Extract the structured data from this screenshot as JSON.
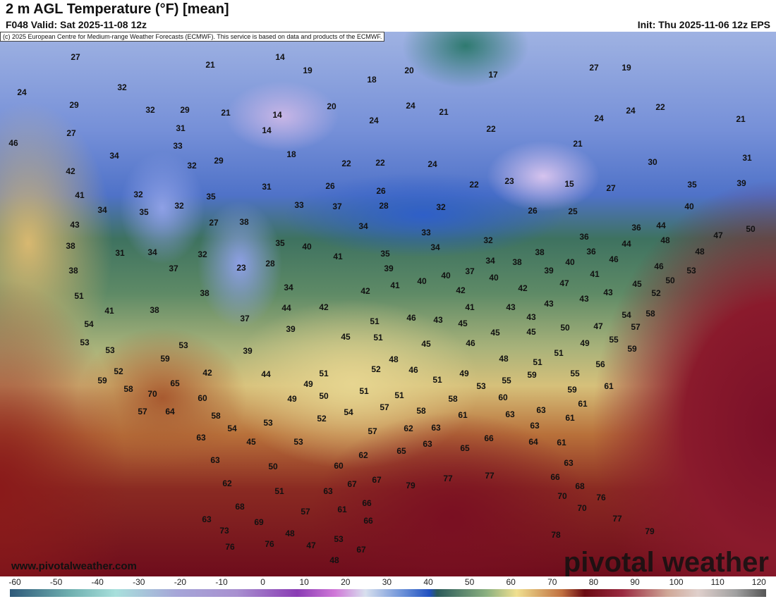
{
  "header": {
    "title": "2 m AGL Temperature (°F) [mean]",
    "valid": "F048 Valid: Sat 2025-11-08 12z",
    "init": "Init: Thu 2025-11-06 12z EPS"
  },
  "copyright": "(c) 2025 European Centre for Medium-range Weather Forecasts (ECMWF). This service is based on data and products of the ECMWF.",
  "watermark": {
    "site": "www.pivotalweather.com",
    "brand": "pivotal weather"
  },
  "colorbar": {
    "unit": "°F",
    "ticks": [
      "-60",
      "-50",
      "-40",
      "-30",
      "-20",
      "-10",
      "0",
      "10",
      "20",
      "30",
      "40",
      "50",
      "60",
      "70",
      "80",
      "90",
      "100",
      "110",
      "120"
    ]
  },
  "labels": [
    "27",
    "24",
    "32",
    "29",
    "32",
    "29",
    "31",
    "27",
    "34",
    "33",
    "46",
    "42",
    "32",
    "29",
    "21",
    "14",
    "19",
    "18",
    "20",
    "17",
    "27",
    "19",
    "14",
    "14",
    "21",
    "20",
    "24",
    "21",
    "24",
    "22",
    "24",
    "24",
    "22",
    "21",
    "18",
    "22",
    "22",
    "24",
    "21",
    "30",
    "31",
    "15",
    "23",
    "22",
    "27",
    "35",
    "39",
    "41",
    "32",
    "35",
    "31",
    "26",
    "26",
    "28",
    "33",
    "37",
    "34",
    "35",
    "32",
    "43",
    "27",
    "38",
    "34",
    "32",
    "33",
    "26",
    "25",
    "40",
    "36",
    "44",
    "47",
    "50",
    "38",
    "31",
    "34",
    "37",
    "32",
    "35",
    "40",
    "23",
    "28",
    "41",
    "35",
    "34",
    "32",
    "36",
    "48",
    "38",
    "36",
    "44",
    "46",
    "48",
    "38",
    "39",
    "40",
    "37",
    "34",
    "38",
    "39",
    "40",
    "46",
    "53",
    "41",
    "50",
    "40",
    "47",
    "45",
    "51",
    "38",
    "34",
    "42",
    "41",
    "40",
    "42",
    "42",
    "43",
    "43",
    "52",
    "41",
    "38",
    "44",
    "42",
    "41",
    "43",
    "43",
    "58",
    "54",
    "37",
    "51",
    "46",
    "43",
    "45",
    "45",
    "43",
    "45",
    "50",
    "47",
    "57",
    "54",
    "39",
    "45",
    "51",
    "45",
    "46",
    "51",
    "49",
    "55",
    "59",
    "53",
    "53",
    "39",
    "53",
    "59",
    "48",
    "48",
    "51",
    "56",
    "52",
    "42",
    "44",
    "51",
    "52",
    "46",
    "55",
    "65",
    "59",
    "58",
    "70",
    "60",
    "49",
    "51",
    "49",
    "53",
    "55",
    "59",
    "59",
    "61",
    "50",
    "49",
    "51",
    "51",
    "57",
    "64",
    "58",
    "54",
    "53",
    "52",
    "54",
    "57",
    "58",
    "58",
    "60",
    "63",
    "61",
    "61",
    "63",
    "63",
    "63",
    "45",
    "53",
    "57",
    "62",
    "63",
    "61",
    "62",
    "65",
    "63",
    "65",
    "66",
    "64",
    "61",
    "63",
    "50",
    "60",
    "63",
    "62",
    "51",
    "63",
    "67",
    "67",
    "79",
    "77",
    "77",
    "66",
    "68",
    "70",
    "76",
    "68",
    "57",
    "61",
    "66",
    "70",
    "63",
    "69",
    "66",
    "77",
    "79",
    "73",
    "48",
    "53",
    "76",
    "76",
    "47",
    "67",
    "78",
    "48"
  ]
}
